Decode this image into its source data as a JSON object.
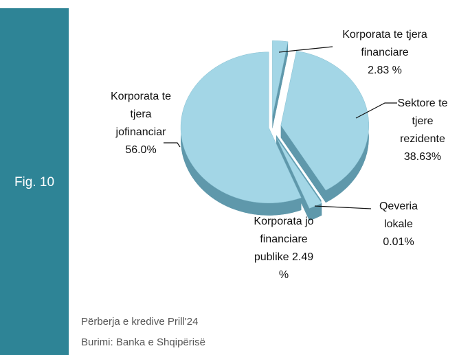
{
  "chart_data": {
    "type": "pie",
    "figure_label": "Fig. 10",
    "categories": [
      "Korporata te tjera financiare",
      "Sektore te tjere rezidente",
      "Qeveria lokale",
      "Korporata jo financiare publike",
      "Korporata te tjera jofinanciar"
    ],
    "values": [
      2.83,
      38.63,
      0.01,
      2.49,
      56.0
    ],
    "value_labels": [
      "2.83 %",
      "38.63%",
      "0.01%",
      "2.49 %",
      "56.0%"
    ],
    "color": "#a3d6e6",
    "side_color": "#5f98ab",
    "notes": [
      "Përberja e kredive Prill'24",
      "Burimi: Banka e Shqipërisë"
    ]
  }
}
